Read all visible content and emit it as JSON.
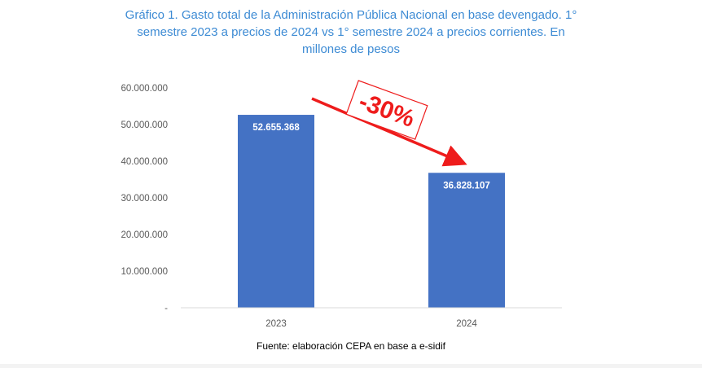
{
  "chart_data": {
    "type": "bar",
    "title_lines": [
      "Gráfico 1. Gasto total de la Administración Pública Nacional en base devengado. 1°",
      "semestre 2023 a precios de 2024 vs 1° semestre 2024 a precios corrientes. En",
      "millones de pesos"
    ],
    "categories": [
      "2023",
      "2024"
    ],
    "values": [
      52655368,
      36828107
    ],
    "data_labels": [
      "52.655.368",
      "36.828.107"
    ],
    "y_ticks": [
      "-",
      "10.000.000",
      "20.000.000",
      "30.000.000",
      "40.000.000",
      "50.000.000",
      "60.000.000"
    ],
    "ylim": [
      0,
      60000000
    ],
    "xlabel": "",
    "ylabel": "",
    "grid": false,
    "bar_color": "#4472c4",
    "annotation": {
      "text": "-30%",
      "color": "#ee1c1c"
    },
    "source": "Fuente: elaboración CEPA en base a e-sidif"
  }
}
